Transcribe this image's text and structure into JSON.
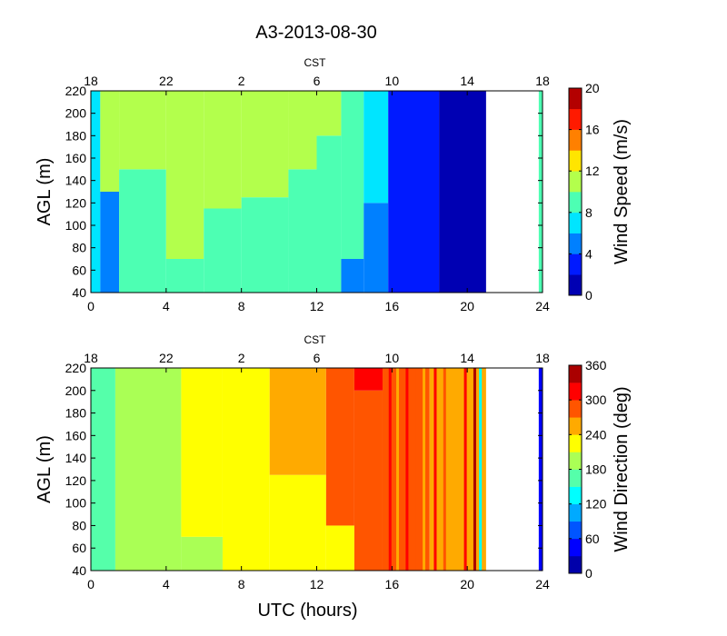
{
  "title": "A3-2013-08-30",
  "chart_data": [
    {
      "type": "heatmap",
      "name": "wind-speed",
      "title": "",
      "xlabel": "",
      "ylabel": "AGL (m)",
      "top_axis_label": "CST",
      "xlim": [
        0,
        24
      ],
      "ylim": [
        40,
        220
      ],
      "x_ticks": [
        0,
        4,
        8,
        12,
        16,
        20,
        24
      ],
      "x_tick_labels": [
        "0",
        "4",
        "8",
        "12",
        "16",
        "20",
        "24"
      ],
      "top_ticks": [
        0,
        4,
        8,
        12,
        16,
        20,
        24
      ],
      "top_tick_labels": [
        "18",
        "22",
        "2",
        "6",
        "10",
        "14",
        "18"
      ],
      "y_ticks": [
        40,
        60,
        80,
        100,
        120,
        140,
        160,
        180,
        200,
        220
      ],
      "y_tick_labels": [
        "40",
        "60",
        "80",
        "100",
        "120",
        "140",
        "160",
        "180",
        "200",
        "220"
      ],
      "colorbar": {
        "label": "Wind Speed (m/s)",
        "min": 0,
        "max": 20,
        "ticks": [
          0,
          4,
          8,
          12,
          16,
          20
        ],
        "tick_labels": [
          "0",
          "4",
          "8",
          "12",
          "16",
          "20"
        ],
        "levels": 10
      },
      "no_data_x_range": [
        21,
        23.8
      ],
      "regions": [
        {
          "x0": 0,
          "x1": 0.5,
          "bottom": 40,
          "top": 220,
          "level": 3
        },
        {
          "x0": 0.5,
          "x1": 1.5,
          "bottom": 40,
          "top": 130,
          "level": 2
        },
        {
          "x0": 0.5,
          "x1": 1.5,
          "bottom": 130,
          "top": 220,
          "level": 5
        },
        {
          "x0": 1.5,
          "x1": 4,
          "bottom": 40,
          "top": 150,
          "level": 4
        },
        {
          "x0": 1.5,
          "x1": 4,
          "bottom": 150,
          "top": 220,
          "level": 5
        },
        {
          "x0": 4,
          "x1": 6,
          "bottom": 40,
          "top": 70,
          "level": 4
        },
        {
          "x0": 4,
          "x1": 6,
          "bottom": 70,
          "top": 220,
          "level": 5
        },
        {
          "x0": 6,
          "x1": 8,
          "bottom": 40,
          "top": 115,
          "level": 4
        },
        {
          "x0": 6,
          "x1": 8,
          "bottom": 115,
          "top": 220,
          "level": 5
        },
        {
          "x0": 8,
          "x1": 10.5,
          "bottom": 40,
          "top": 125,
          "level": 4
        },
        {
          "x0": 8,
          "x1": 10.5,
          "bottom": 125,
          "top": 220,
          "level": 5
        },
        {
          "x0": 10.5,
          "x1": 12,
          "bottom": 40,
          "top": 150,
          "level": 4
        },
        {
          "x0": 10.5,
          "x1": 12,
          "bottom": 150,
          "top": 220,
          "level": 5
        },
        {
          "x0": 12,
          "x1": 13.3,
          "bottom": 40,
          "top": 180,
          "level": 4
        },
        {
          "x0": 12,
          "x1": 13.3,
          "bottom": 180,
          "top": 220,
          "level": 5
        },
        {
          "x0": 13.3,
          "x1": 14.5,
          "bottom": 40,
          "top": 70,
          "level": 2
        },
        {
          "x0": 13.3,
          "x1": 14.5,
          "bottom": 70,
          "top": 220,
          "level": 4
        },
        {
          "x0": 14.5,
          "x1": 15.8,
          "bottom": 40,
          "top": 120,
          "level": 2
        },
        {
          "x0": 14.5,
          "x1": 15.8,
          "bottom": 120,
          "top": 220,
          "level": 3
        },
        {
          "x0": 15.8,
          "x1": 18.5,
          "bottom": 40,
          "top": 220,
          "level": 1
        },
        {
          "x0": 18.5,
          "x1": 21,
          "bottom": 40,
          "top": 220,
          "level": 0
        },
        {
          "x0": 23.8,
          "x1": 24,
          "bottom": 40,
          "top": 220,
          "level": 4
        }
      ]
    },
    {
      "type": "heatmap",
      "name": "wind-direction",
      "title": "",
      "xlabel": "UTC (hours)",
      "ylabel": "AGL (m)",
      "top_axis_label": "CST",
      "xlim": [
        0,
        24
      ],
      "ylim": [
        40,
        220
      ],
      "x_ticks": [
        0,
        4,
        8,
        12,
        16,
        20,
        24
      ],
      "x_tick_labels": [
        "0",
        "4",
        "8",
        "12",
        "16",
        "20",
        "24"
      ],
      "top_ticks": [
        0,
        4,
        8,
        12,
        16,
        20,
        24
      ],
      "top_tick_labels": [
        "18",
        "22",
        "2",
        "6",
        "10",
        "14",
        "18"
      ],
      "y_ticks": [
        40,
        60,
        80,
        100,
        120,
        140,
        160,
        180,
        200,
        220
      ],
      "y_tick_labels": [
        "40",
        "60",
        "80",
        "100",
        "120",
        "140",
        "160",
        "180",
        "200",
        "220"
      ],
      "colorbar": {
        "label": "Wind Direction (deg)",
        "min": 0,
        "max": 360,
        "ticks": [
          0,
          60,
          120,
          180,
          240,
          300,
          360
        ],
        "tick_labels": [
          "0",
          "60",
          "120",
          "180",
          "240",
          "300",
          "360"
        ],
        "levels": 12
      },
      "no_data_x_range": [
        21,
        23.8
      ],
      "regions": [
        {
          "x0": 0,
          "x1": 1.3,
          "bottom": 40,
          "top": 220,
          "level": 5
        },
        {
          "x0": 1.3,
          "x1": 4.8,
          "bottom": 40,
          "top": 220,
          "level": 6
        },
        {
          "x0": 4.8,
          "x1": 7,
          "bottom": 40,
          "top": 70,
          "level": 6
        },
        {
          "x0": 4.8,
          "x1": 7,
          "bottom": 70,
          "top": 220,
          "level": 7
        },
        {
          "x0": 7,
          "x1": 9.5,
          "bottom": 40,
          "top": 220,
          "level": 7
        },
        {
          "x0": 9.5,
          "x1": 12.5,
          "bottom": 40,
          "top": 125,
          "level": 7
        },
        {
          "x0": 9.5,
          "x1": 12.5,
          "bottom": 125,
          "top": 220,
          "level": 8
        },
        {
          "x0": 12.5,
          "x1": 14,
          "bottom": 40,
          "top": 80,
          "level": 7
        },
        {
          "x0": 12.5,
          "x1": 14,
          "bottom": 80,
          "top": 220,
          "level": 9
        },
        {
          "x0": 14,
          "x1": 15.5,
          "bottom": 40,
          "top": 200,
          "level": 9
        },
        {
          "x0": 14,
          "x1": 15.5,
          "bottom": 200,
          "top": 220,
          "level": 10
        },
        {
          "x0": 15.5,
          "x1": 18,
          "bottom": 40,
          "top": 220,
          "level": 9
        },
        {
          "x0": 18,
          "x1": 21,
          "bottom": 40,
          "top": 220,
          "level": 8
        },
        {
          "x0": 23.8,
          "x1": 24,
          "bottom": 40,
          "top": 220,
          "level": 1
        }
      ],
      "streaks": [
        {
          "x": 15.9,
          "level": 10
        },
        {
          "x": 16.3,
          "level": 8
        },
        {
          "x": 16.8,
          "level": 10
        },
        {
          "x": 17.2,
          "level": 9
        },
        {
          "x": 17.7,
          "level": 8
        },
        {
          "x": 18.3,
          "level": 10
        },
        {
          "x": 18.8,
          "level": 9
        },
        {
          "x": 19.4,
          "level": 8
        },
        {
          "x": 19.9,
          "level": 10
        },
        {
          "x": 20.4,
          "level": 11
        },
        {
          "x": 20.7,
          "level": 4
        }
      ]
    }
  ]
}
